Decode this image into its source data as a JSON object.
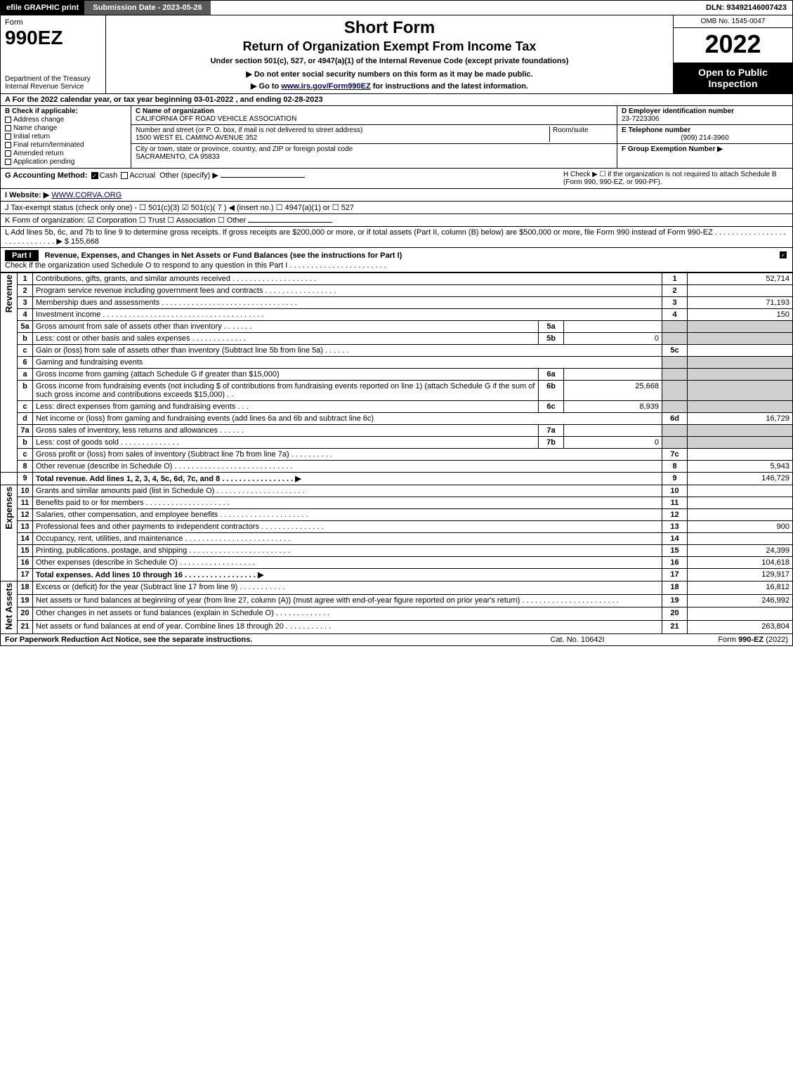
{
  "topbar": {
    "efile": "efile GRAPHIC print",
    "submission": "Submission Date - 2023-05-26",
    "dln": "DLN: 93492146007423"
  },
  "header": {
    "form_label": "Form",
    "form_number": "990EZ",
    "dept": "Department of the Treasury\nInternal Revenue Service",
    "title1": "Short Form",
    "title2": "Return of Organization Exempt From Income Tax",
    "subtitle1": "Under section 501(c), 527, or 4947(a)(1) of the Internal Revenue Code (except private foundations)",
    "subtitle2": "▶ Do not enter social security numbers on this form as it may be made public.",
    "subtitle3": "▶ Go to www.irs.gov/Form990EZ for instructions and the latest information.",
    "omb": "OMB No. 1545-0047",
    "year": "2022",
    "open": "Open to Public Inspection"
  },
  "lineA": "A  For the 2022 calendar year, or tax year beginning 03-01-2022 , and ending 02-28-2023",
  "B": {
    "hdr": "B  Check if applicable:",
    "items": [
      "Address change",
      "Name change",
      "Initial return",
      "Final return/terminated",
      "Amended return",
      "Application pending"
    ]
  },
  "C": {
    "name_lbl": "C Name of organization",
    "name": "CALIFORNIA OFF ROAD VEHICLE ASSOCIATION",
    "street_lbl": "Number and street (or P. O. box, if mail is not delivered to street address)",
    "room_lbl": "Room/suite",
    "street": "1500 WEST EL CAMINO AVENUE 352",
    "city_lbl": "City or town, state or province, country, and ZIP or foreign postal code",
    "city": "SACRAMENTO, CA  95833"
  },
  "D": {
    "lbl": "D Employer identification number",
    "val": "23-7223306"
  },
  "E": {
    "lbl": "E Telephone number",
    "val": "(909) 214-3960"
  },
  "F": {
    "lbl": "F Group Exemption Number  ▶",
    "val": ""
  },
  "G": {
    "lbl": "G Accounting Method:",
    "cash": "Cash",
    "accrual": "Accrual",
    "other": "Other (specify) ▶"
  },
  "H": "H   Check ▶ ☐ if the organization is not required to attach Schedule B (Form 990, 990-EZ, or 990-PF).",
  "I": {
    "lbl": "I Website: ▶",
    "val": "WWW.CORVA.ORG"
  },
  "J": "J Tax-exempt status (check only one) - ☐ 501(c)(3) ☑ 501(c)( 7 ) ◀ (insert no.) ☐ 4947(a)(1) or ☐ 527",
  "K": "K Form of organization:  ☑ Corporation  ☐ Trust  ☐ Association  ☐ Other",
  "L": {
    "text": "L Add lines 5b, 6c, and 7b to line 9 to determine gross receipts. If gross receipts are $200,000 or more, or if total assets (Part II, column (B) below) are $500,000 or more, file Form 990 instead of Form 990-EZ . . . . . . . . . . . . . . . . . . . . . . . . . . . . .  ▶ $",
    "val": "155,668"
  },
  "partI": {
    "label": "Part I",
    "title": "Revenue, Expenses, and Changes in Net Assets or Fund Balances (see the instructions for Part I)",
    "check": "Check if the organization used Schedule O to respond to any question in this Part I . . . . . . . . . . . . . . . . . . . . . . .",
    "checked": true
  },
  "sections": {
    "revenue": "Revenue",
    "expenses": "Expenses",
    "netassets": "Net Assets"
  },
  "lines": {
    "l1": {
      "n": "1",
      "t": "Contributions, gifts, grants, and similar amounts received . . . . . . . . . . . . . . . . . . . .",
      "c": "1",
      "v": "52,714"
    },
    "l2": {
      "n": "2",
      "t": "Program service revenue including government fees and contracts . . . . . . . . . . . . . . . . .",
      "c": "2",
      "v": ""
    },
    "l3": {
      "n": "3",
      "t": "Membership dues and assessments . . . . . . . . . . . . . . . . . . . . . . . . . . . . . . . .",
      "c": "3",
      "v": "71,193"
    },
    "l4": {
      "n": "4",
      "t": "Investment income . . . . . . . . . . . . . . . . . . . . . . . . . . . . . . . . . . . . . .",
      "c": "4",
      "v": "150"
    },
    "l5a": {
      "n": "5a",
      "t": "Gross amount from sale of assets other than inventory . . . . . . .",
      "sc": "5a",
      "sv": ""
    },
    "l5b": {
      "n": "b",
      "t": "Less: cost or other basis and sales expenses . . . . . . . . . . . . .",
      "sc": "5b",
      "sv": "0"
    },
    "l5c": {
      "n": "c",
      "t": "Gain or (loss) from sale of assets other than inventory (Subtract line 5b from line 5a) . . . . . .",
      "c": "5c",
      "v": ""
    },
    "l6": {
      "n": "6",
      "t": "Gaming and fundraising events"
    },
    "l6a": {
      "n": "a",
      "t": "Gross income from gaming (attach Schedule G if greater than $15,000)",
      "sc": "6a",
      "sv": ""
    },
    "l6b": {
      "n": "b",
      "t": "Gross income from fundraising events (not including $                       of contributions from fundraising events reported on line 1) (attach Schedule G if the sum of such gross income and contributions exceeds $15,000)    .    .",
      "sc": "6b",
      "sv": "25,668"
    },
    "l6c": {
      "n": "c",
      "t": "Less: direct expenses from gaming and fundraising events     .     .     .",
      "sc": "6c",
      "sv": "8,939"
    },
    "l6d": {
      "n": "d",
      "t": "Net income or (loss) from gaming and fundraising events (add lines 6a and 6b and subtract line 6c)",
      "c": "6d",
      "v": "16,729"
    },
    "l7a": {
      "n": "7a",
      "t": "Gross sales of inventory, less returns and allowances . . . . . .",
      "sc": "7a",
      "sv": ""
    },
    "l7b": {
      "n": "b",
      "t": "Less: cost of goods sold        .    .    .    .    .    .    .    .    .    .    .    .    .    .",
      "sc": "7b",
      "sv": "0"
    },
    "l7c": {
      "n": "c",
      "t": "Gross profit or (loss) from sales of inventory (Subtract line 7b from line 7a) . . . . . . . . . .",
      "c": "7c",
      "v": ""
    },
    "l8": {
      "n": "8",
      "t": "Other revenue (describe in Schedule O) . . . . . . . . . . . . . . . . . . . . . . . . . . . .",
      "c": "8",
      "v": "5,943"
    },
    "l9": {
      "n": "9",
      "t": "Total revenue. Add lines 1, 2, 3, 4, 5c, 6d, 7c, and 8  .  .  .  .  .  .  .  .  .  .  .  .  .  .  .  .  .   ▶",
      "c": "9",
      "v": "146,729",
      "bold": true
    },
    "l10": {
      "n": "10",
      "t": "Grants and similar amounts paid (list in Schedule O) . . . . . . . . . . . . . . . . . . . . .",
      "c": "10",
      "v": ""
    },
    "l11": {
      "n": "11",
      "t": "Benefits paid to or for members      .    .    .    .    .    .    .    .    .    .    .    .    .    .    .    .    .    .    .    .",
      "c": "11",
      "v": ""
    },
    "l12": {
      "n": "12",
      "t": "Salaries, other compensation, and employee benefits . . . . . . . . . . . . . . . . . . . . .",
      "c": "12",
      "v": ""
    },
    "l13": {
      "n": "13",
      "t": "Professional fees and other payments to independent contractors . . . . . . . . . . . . . . .",
      "c": "13",
      "v": "900"
    },
    "l14": {
      "n": "14",
      "t": "Occupancy, rent, utilities, and maintenance . . . . . . . . . . . . . . . . . . . . . . . . .",
      "c": "14",
      "v": ""
    },
    "l15": {
      "n": "15",
      "t": "Printing, publications, postage, and shipping . . . . . . . . . . . . . . . . . . . . . . . .",
      "c": "15",
      "v": "24,399"
    },
    "l16": {
      "n": "16",
      "t": "Other expenses (describe in Schedule O)      .    .    .    .    .    .    .    .    .    .    .    .    .    .    .    .    .    .",
      "c": "16",
      "v": "104,618"
    },
    "l17": {
      "n": "17",
      "t": "Total expenses. Add lines 10 through 16      .    .    .    .    .    .    .    .    .    .    .    .    .    .    .    .    .   ▶",
      "c": "17",
      "v": "129,917",
      "bold": true
    },
    "l18": {
      "n": "18",
      "t": "Excess or (deficit) for the year (Subtract line 17 from line 9)         .    .    .    .    .    .    .    .    .    .    .",
      "c": "18",
      "v": "16,812"
    },
    "l19": {
      "n": "19",
      "t": "Net assets or fund balances at beginning of year (from line 27, column (A)) (must agree with end-of-year figure reported on prior year's return) . . . . . . . . . . . . . . . . . . . . . . .",
      "c": "19",
      "v": "246,992"
    },
    "l20": {
      "n": "20",
      "t": "Other changes in net assets or fund balances (explain in Schedule O) . . . . . . . . . . . . .",
      "c": "20",
      "v": ""
    },
    "l21": {
      "n": "21",
      "t": "Net assets or fund balances at end of year. Combine lines 18 through 20 . . . . . . . . . . .",
      "c": "21",
      "v": "263,804"
    }
  },
  "footer": {
    "left": "For Paperwork Reduction Act Notice, see the separate instructions.",
    "center": "Cat. No. 10642I",
    "right": "Form 990-EZ (2022)"
  },
  "colors": {
    "black": "#000000",
    "darkgray": "#595959",
    "lightgray": "#d0d0d0",
    "white": "#ffffff"
  }
}
